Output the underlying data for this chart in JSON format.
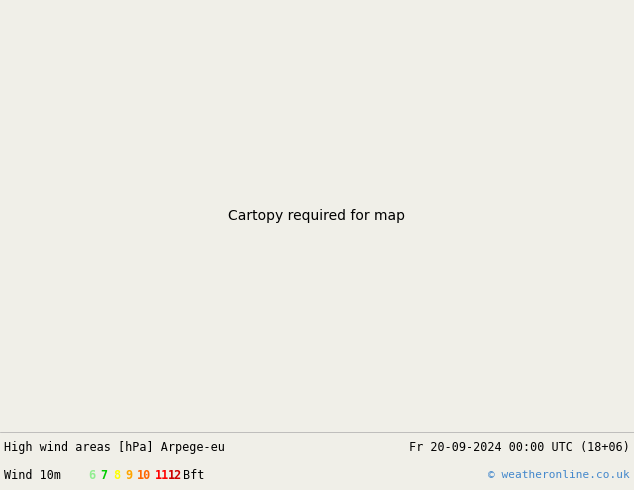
{
  "title_left": "High wind areas [hPa] Arpege-eu",
  "title_right": "Fr 20-09-2024 00:00 UTC (18+06)",
  "legend_label": "Wind 10m",
  "bft_label": "Bft",
  "bft_numbers": [
    "6",
    "7",
    "8",
    "9",
    "10",
    "11",
    "12"
  ],
  "bft_colors": [
    "#90EE90",
    "#00CC00",
    "#FFFF00",
    "#FFA500",
    "#FF6600",
    "#FF0000",
    "#CC0000"
  ],
  "copyright": "© weatheronline.co.uk",
  "bg_color": "#f0efe8",
  "land_color": "#c8c8a8",
  "sea_color": "#d8dce0",
  "model_area_color": "#f0f8e8",
  "bottom_bar_color": "#e8e8e8",
  "fig_width": 6.34,
  "fig_height": 4.9,
  "dpi": 100,
  "lon_min": -45,
  "lon_max": 55,
  "lat_min": 25,
  "lat_max": 75
}
